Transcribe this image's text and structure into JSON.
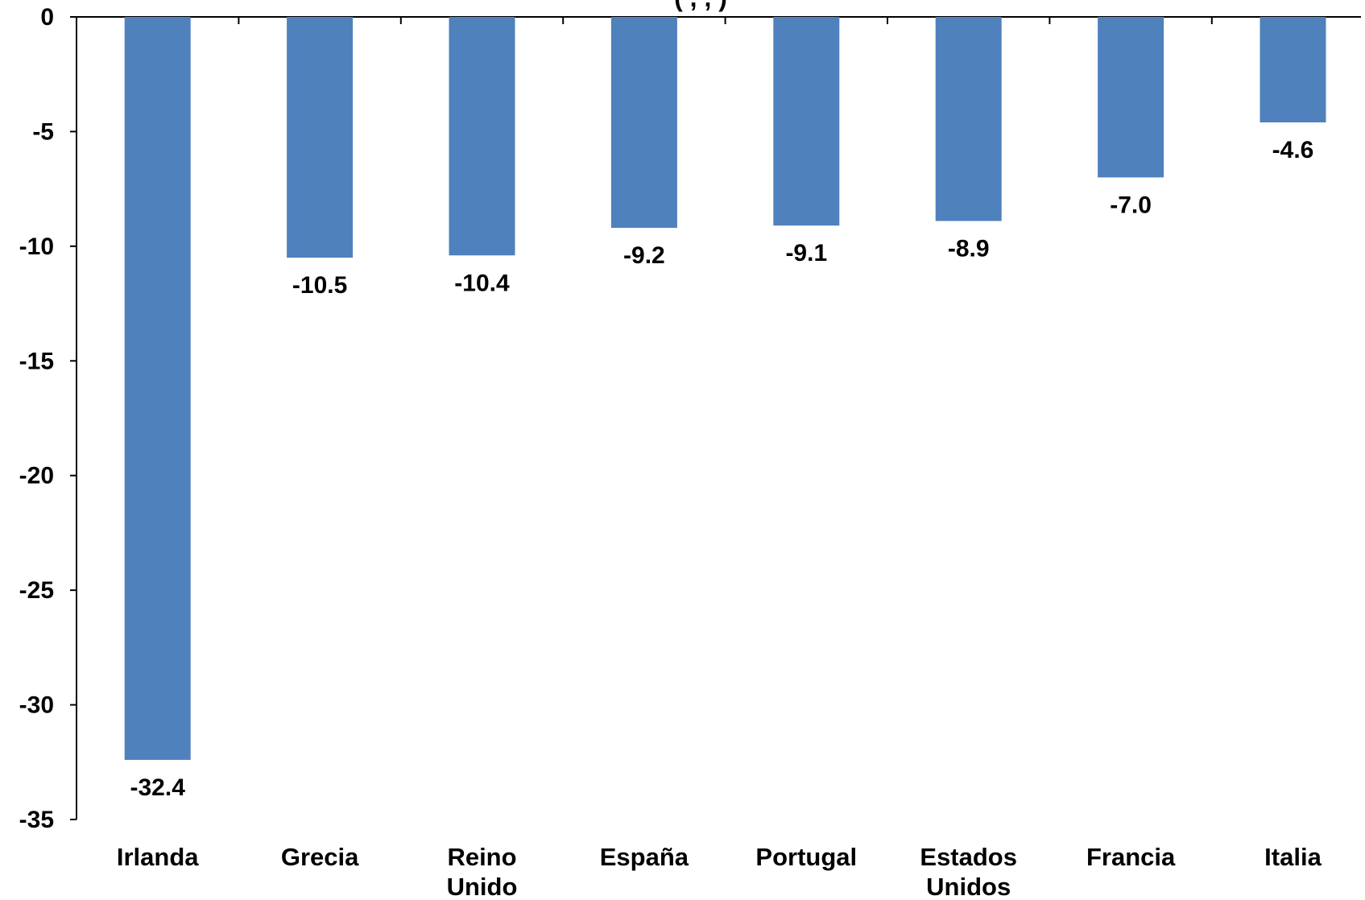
{
  "chart_data": {
    "type": "bar",
    "title": "(                              ,                        ,          )",
    "xlabel": "",
    "ylabel": "",
    "ylim": [
      -35,
      0
    ],
    "yticks": [
      0,
      -5,
      -10,
      -15,
      -20,
      -25,
      -30,
      -35
    ],
    "ytick_labels": [
      "0",
      "-5",
      "-10",
      "-15",
      "-20",
      "-25",
      "-30",
      "-35"
    ],
    "categories": [
      [
        "Irlanda"
      ],
      [
        "Grecia"
      ],
      [
        "Reino",
        "Unido"
      ],
      [
        "España"
      ],
      [
        "Portugal"
      ],
      [
        "Estados",
        "Unidos"
      ],
      [
        "Francia"
      ],
      [
        "Italia"
      ]
    ],
    "values": [
      -32.4,
      -10.5,
      -10.4,
      -9.2,
      -9.1,
      -8.9,
      -7.0,
      -4.6
    ],
    "data_labels": [
      "-32.4",
      "-10.5",
      "-10.4",
      "-9.2",
      "-9.1",
      "-8.9",
      "-7.0",
      "-4.6"
    ],
    "bar_color": "#4F81BD",
    "grid": false,
    "legend": "none"
  }
}
